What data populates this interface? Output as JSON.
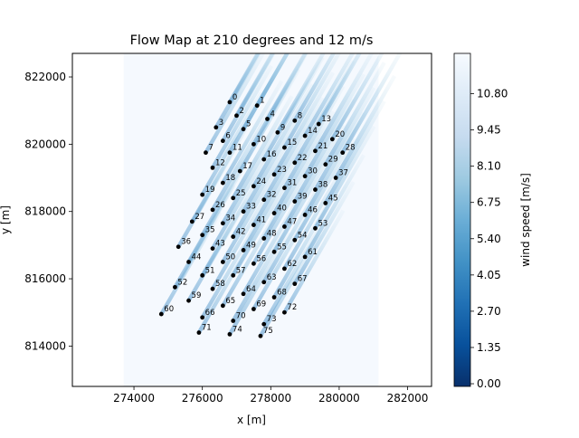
{
  "chart_data": {
    "type": "heatmap",
    "title": "Flow Map at 210 degrees and 12 m/s",
    "xlabel": "x [m]",
    "ylabel": "y [m]",
    "xlim": [
      272200,
      282700
    ],
    "ylim": [
      812800,
      822700
    ],
    "x_ticks": [
      274000,
      276000,
      278000,
      280000,
      282000
    ],
    "x_tick_labels": [
      "274000",
      "276000",
      "278000",
      "280000",
      "282000"
    ],
    "y_ticks": [
      814000,
      816000,
      818000,
      820000,
      822000
    ],
    "y_tick_labels": [
      "814000",
      "816000",
      "818000",
      "820000",
      "822000"
    ],
    "flow_domain": {
      "x": [
        273700,
        281150
      ],
      "y": [
        812800,
        822700
      ]
    },
    "wind_direction_deg": 210,
    "colorbar": {
      "label": "wind speed [m/s]",
      "min": -0.1,
      "max": 12.3,
      "ticks": [
        0.0,
        1.35,
        2.7,
        4.05,
        5.4,
        6.75,
        8.1,
        9.45,
        10.8
      ],
      "tick_labels": [
        "0.00",
        "1.35",
        "2.70",
        "4.05",
        "5.40",
        "6.75",
        "8.10",
        "9.45",
        "10.80"
      ],
      "colormap": "Blues_r"
    },
    "turbines": [
      {
        "id": "0",
        "x": 276800,
        "y": 821250
      },
      {
        "id": "1",
        "x": 277600,
        "y": 821150
      },
      {
        "id": "2",
        "x": 277000,
        "y": 820850
      },
      {
        "id": "3",
        "x": 276400,
        "y": 820500
      },
      {
        "id": "4",
        "x": 277900,
        "y": 820750
      },
      {
        "id": "5",
        "x": 277200,
        "y": 820450
      },
      {
        "id": "6",
        "x": 276600,
        "y": 820100
      },
      {
        "id": "7",
        "x": 276100,
        "y": 819750
      },
      {
        "id": "8",
        "x": 278700,
        "y": 820700
      },
      {
        "id": "9",
        "x": 278200,
        "y": 820350
      },
      {
        "id": "10",
        "x": 277500,
        "y": 820000
      },
      {
        "id": "11",
        "x": 276800,
        "y": 819750
      },
      {
        "id": "12",
        "x": 276300,
        "y": 819300
      },
      {
        "id": "13",
        "x": 279400,
        "y": 820600
      },
      {
        "id": "14",
        "x": 279000,
        "y": 820250
      },
      {
        "id": "15",
        "x": 278400,
        "y": 819900
      },
      {
        "id": "16",
        "x": 277800,
        "y": 819550
      },
      {
        "id": "17",
        "x": 277100,
        "y": 819200
      },
      {
        "id": "18",
        "x": 276600,
        "y": 818850
      },
      {
        "id": "19",
        "x": 276000,
        "y": 818500
      },
      {
        "id": "20",
        "x": 279800,
        "y": 820150
      },
      {
        "id": "21",
        "x": 279300,
        "y": 819800
      },
      {
        "id": "22",
        "x": 278700,
        "y": 819450
      },
      {
        "id": "23",
        "x": 278100,
        "y": 819100
      },
      {
        "id": "24",
        "x": 277500,
        "y": 818750
      },
      {
        "id": "25",
        "x": 276900,
        "y": 818400
      },
      {
        "id": "26",
        "x": 276300,
        "y": 818050
      },
      {
        "id": "27",
        "x": 275700,
        "y": 817700
      },
      {
        "id": "28",
        "x": 280100,
        "y": 819750
      },
      {
        "id": "29",
        "x": 279600,
        "y": 819400
      },
      {
        "id": "30",
        "x": 279000,
        "y": 819050
      },
      {
        "id": "31",
        "x": 278400,
        "y": 818700
      },
      {
        "id": "32",
        "x": 277800,
        "y": 818350
      },
      {
        "id": "33",
        "x": 277200,
        "y": 818000
      },
      {
        "id": "34",
        "x": 276600,
        "y": 817650
      },
      {
        "id": "35",
        "x": 276000,
        "y": 817300
      },
      {
        "id": "36",
        "x": 275300,
        "y": 816950
      },
      {
        "id": "37",
        "x": 279900,
        "y": 819000
      },
      {
        "id": "38",
        "x": 279300,
        "y": 818650
      },
      {
        "id": "39",
        "x": 278700,
        "y": 818300
      },
      {
        "id": "40",
        "x": 278100,
        "y": 817950
      },
      {
        "id": "41",
        "x": 277500,
        "y": 817600
      },
      {
        "id": "42",
        "x": 276900,
        "y": 817250
      },
      {
        "id": "43",
        "x": 276300,
        "y": 816900
      },
      {
        "id": "44",
        "x": 275600,
        "y": 816500
      },
      {
        "id": "45",
        "x": 279600,
        "y": 818250
      },
      {
        "id": "46",
        "x": 279000,
        "y": 817900
      },
      {
        "id": "47",
        "x": 278400,
        "y": 817550
      },
      {
        "id": "48",
        "x": 277800,
        "y": 817200
      },
      {
        "id": "49",
        "x": 277200,
        "y": 816850
      },
      {
        "id": "50",
        "x": 276600,
        "y": 816500
      },
      {
        "id": "51",
        "x": 276000,
        "y": 816100
      },
      {
        "id": "52",
        "x": 275200,
        "y": 815750
      },
      {
        "id": "53",
        "x": 279300,
        "y": 817500
      },
      {
        "id": "54",
        "x": 278700,
        "y": 817150
      },
      {
        "id": "55",
        "x": 278100,
        "y": 816800
      },
      {
        "id": "56",
        "x": 277500,
        "y": 816450
      },
      {
        "id": "57",
        "x": 276900,
        "y": 816100
      },
      {
        "id": "58",
        "x": 276300,
        "y": 815700
      },
      {
        "id": "59",
        "x": 275600,
        "y": 815350
      },
      {
        "id": "60",
        "x": 274800,
        "y": 814950
      },
      {
        "id": "61",
        "x": 279000,
        "y": 816650
      },
      {
        "id": "62",
        "x": 278400,
        "y": 816300
      },
      {
        "id": "63",
        "x": 277800,
        "y": 815900
      },
      {
        "id": "64",
        "x": 277200,
        "y": 815550
      },
      {
        "id": "65",
        "x": 276600,
        "y": 815200
      },
      {
        "id": "66",
        "x": 276000,
        "y": 814850
      },
      {
        "id": "67",
        "x": 278700,
        "y": 815850
      },
      {
        "id": "68",
        "x": 278100,
        "y": 815450
      },
      {
        "id": "69",
        "x": 277500,
        "y": 815100
      },
      {
        "id": "70",
        "x": 276900,
        "y": 814750
      },
      {
        "id": "71",
        "x": 275900,
        "y": 814400
      },
      {
        "id": "72",
        "x": 278400,
        "y": 815000
      },
      {
        "id": "73",
        "x": 277800,
        "y": 814650
      },
      {
        "id": "74",
        "x": 276800,
        "y": 814350
      },
      {
        "id": "75",
        "x": 277700,
        "y": 814300
      }
    ]
  }
}
